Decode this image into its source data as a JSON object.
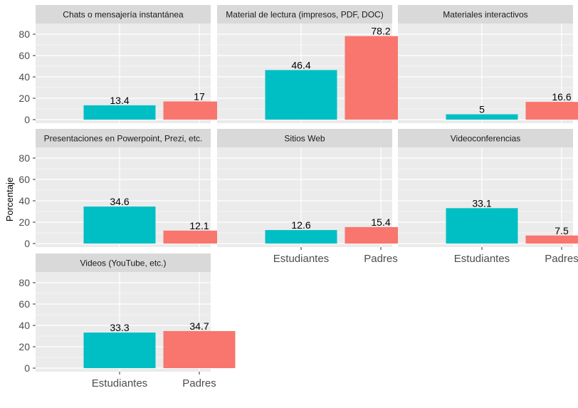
{
  "chart_data": {
    "type": "bar",
    "ylabel": "Porcentaje",
    "xlabel": "",
    "categories": [
      "Estudiantes",
      "Padres"
    ],
    "colors": {
      "Estudiantes": "#00BFC4",
      "Padres": "#F8766D"
    },
    "ylim": [
      -3,
      90
    ],
    "yticks": [
      0,
      20,
      40,
      60,
      80
    ],
    "grid": true,
    "legend": "none",
    "facets": [
      {
        "title": "Chats o mensajería instantánea",
        "values": [
          13.4,
          17
        ],
        "labels": [
          "13.4",
          "17"
        ]
      },
      {
        "title": "Material de lectura (impresos, PDF, DOC)",
        "values": [
          46.4,
          78.2
        ],
        "labels": [
          "46.4",
          "78.2"
        ]
      },
      {
        "title": "Materiales interactivos",
        "values": [
          5,
          16.6
        ],
        "labels": [
          "5",
          "16.6"
        ]
      },
      {
        "title": "Presentaciones en Powerpoint, Prezi, etc.",
        "values": [
          34.6,
          12.1
        ],
        "labels": [
          "34.6",
          "12.1"
        ]
      },
      {
        "title": "Sitios Web",
        "values": [
          12.6,
          15.4
        ],
        "labels": [
          "12.6",
          "15.4"
        ]
      },
      {
        "title": "Videoconferencias",
        "values": [
          33.1,
          7.5
        ],
        "labels": [
          "33.1",
          "7.5"
        ]
      },
      {
        "title": "Videos (YouTube, etc.)",
        "values": [
          33.3,
          34.7
        ],
        "labels": [
          "33.3",
          "34.7"
        ]
      }
    ]
  }
}
